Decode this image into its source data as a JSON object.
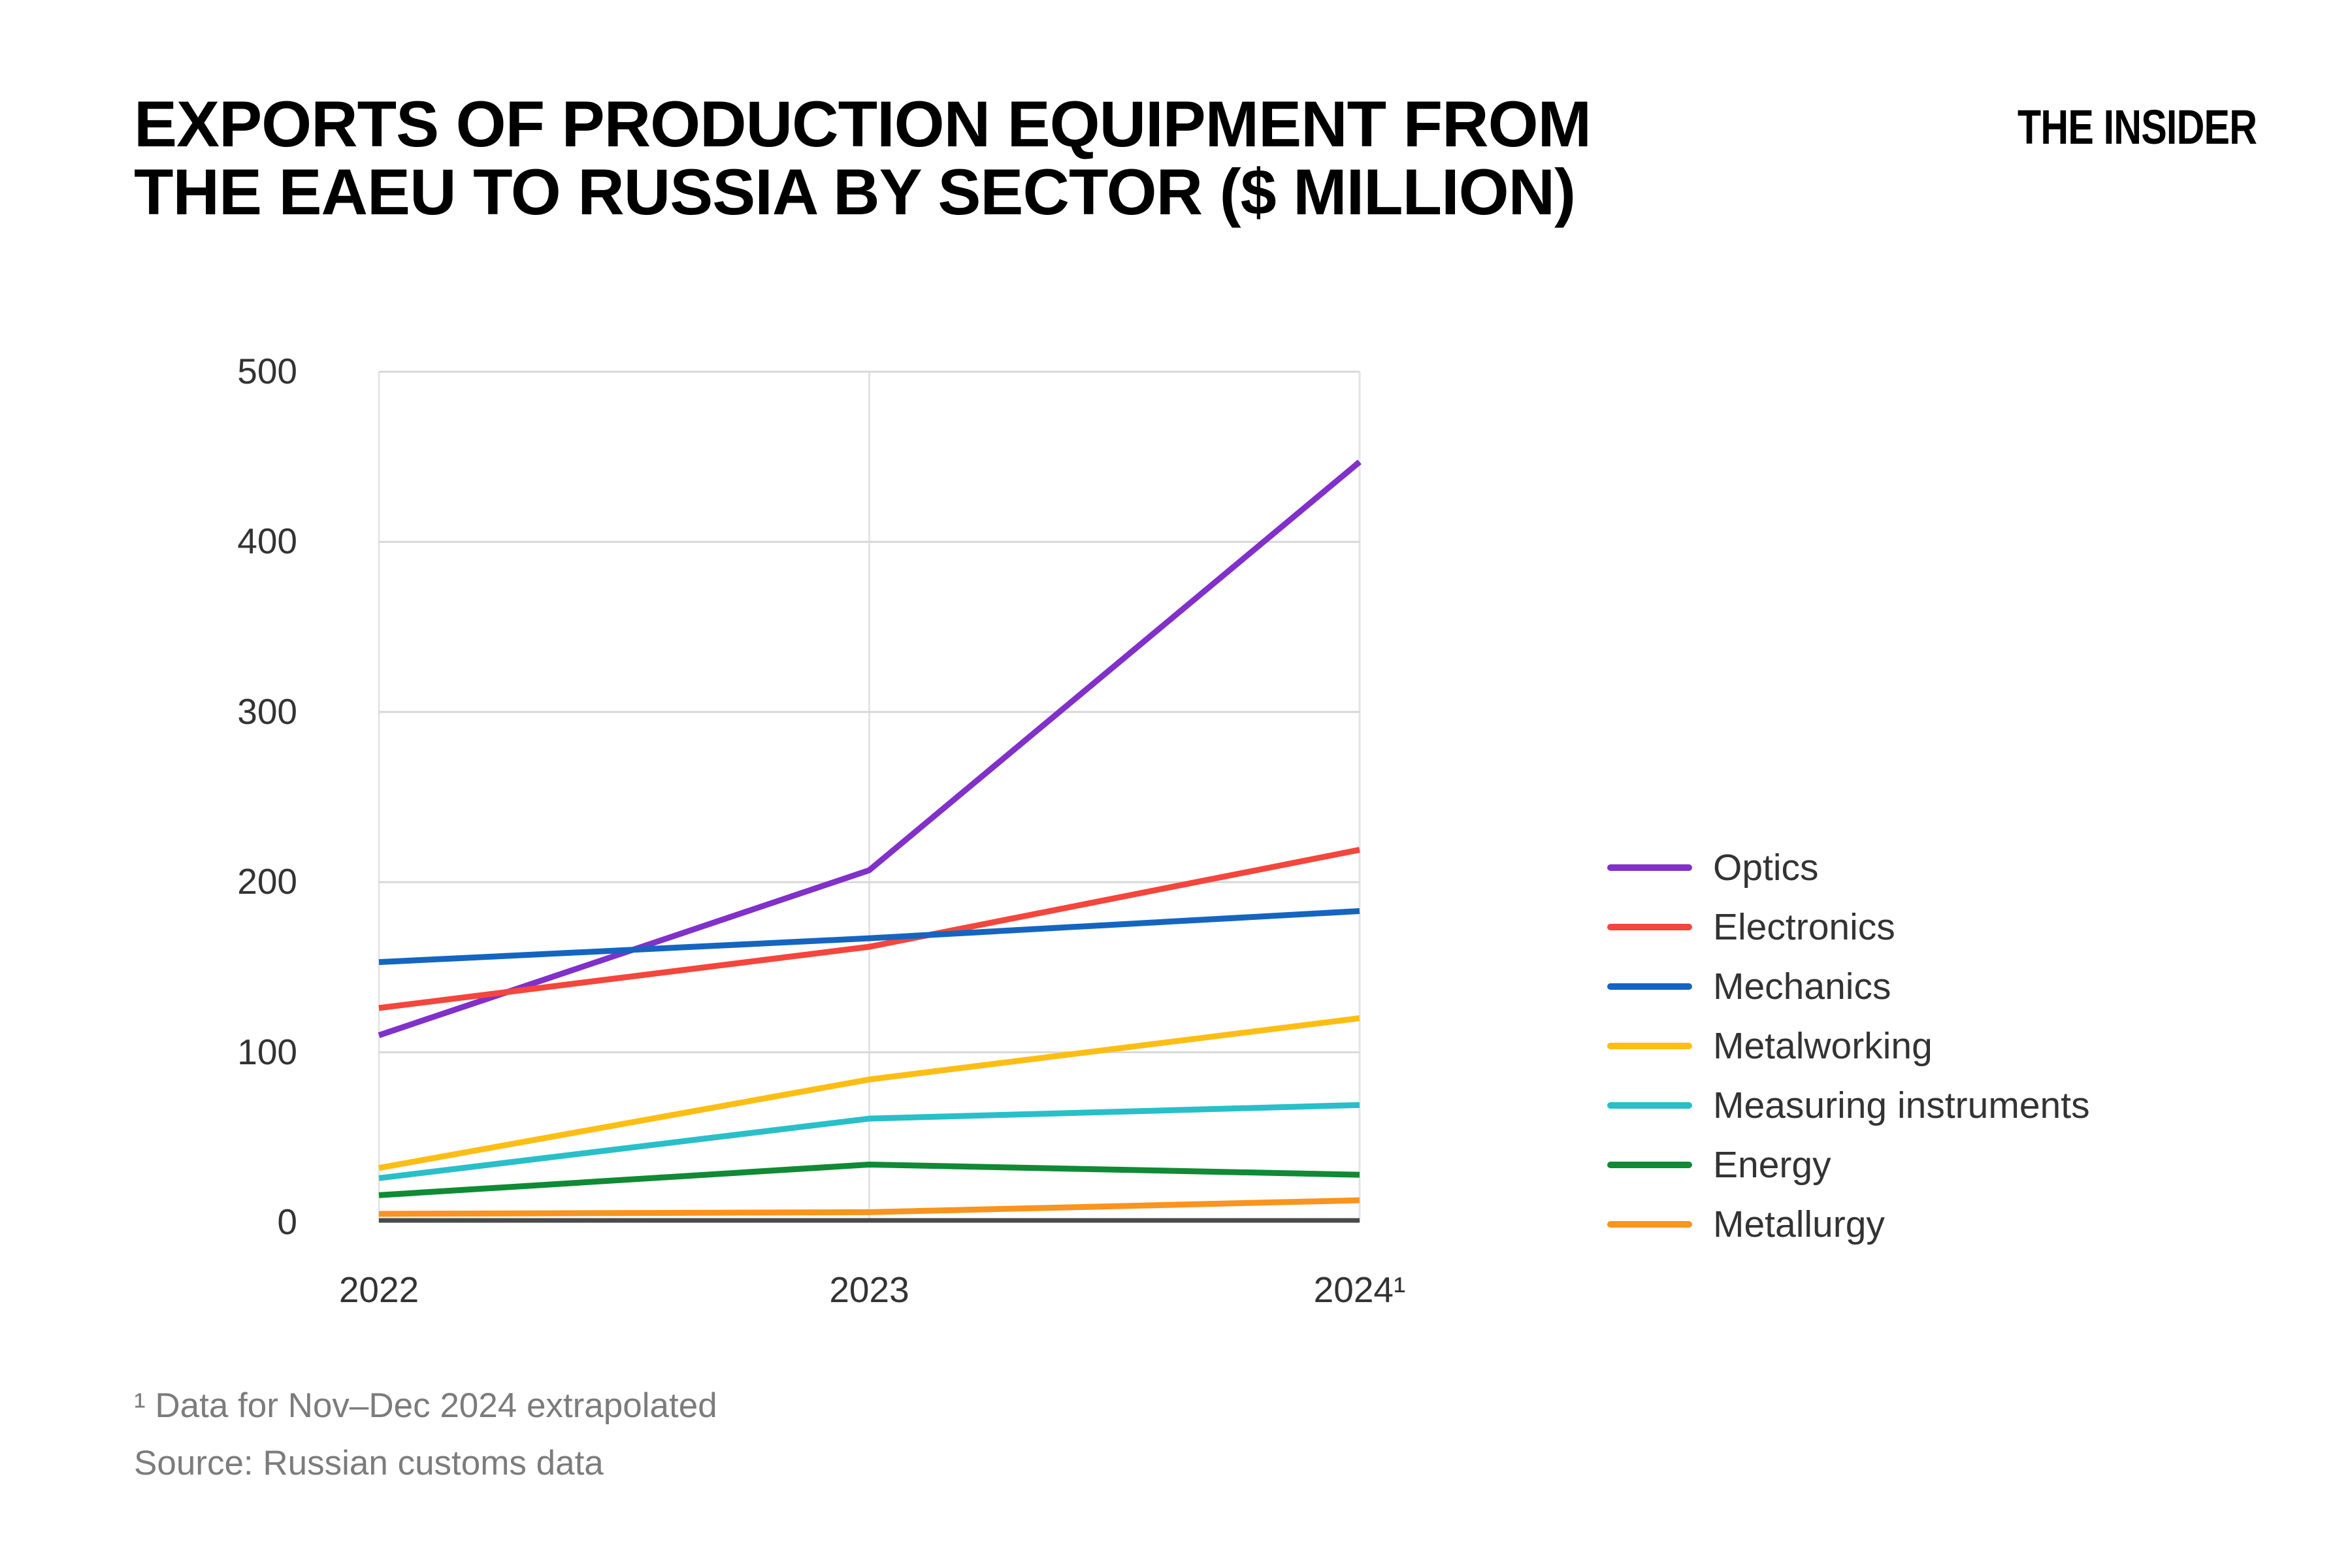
{
  "header": {
    "title_line1": "EXPORTS OF PRODUCTION EQUIPMENT FROM",
    "title_line2": "THE EAEU TO RUSSIA BY SECTOR ($ MILLION)",
    "logo": "THE INSIDER"
  },
  "chart_data": {
    "type": "line",
    "categories": [
      "2022",
      "2023",
      "2024¹"
    ],
    "series": [
      {
        "name": "Optics",
        "color": "#8130C9",
        "values": [
          110,
          207,
          447
        ]
      },
      {
        "name": "Electronics",
        "color": "#F4463C",
        "values": [
          126,
          162,
          219
        ]
      },
      {
        "name": "Mechanics",
        "color": "#1565C0",
        "values": [
          153,
          167,
          183
        ]
      },
      {
        "name": "Metalworking",
        "color": "#FDBE14",
        "values": [
          32,
          84,
          120
        ]
      },
      {
        "name": "Measuring instruments",
        "color": "#29BFC9",
        "values": [
          26,
          61,
          69
        ]
      },
      {
        "name": "Energy",
        "color": "#108A34",
        "values": [
          16,
          34,
          28
        ]
      },
      {
        "name": "Metallurgy",
        "color": "#F9941E",
        "values": [
          5,
          6,
          13
        ]
      }
    ],
    "ylim": [
      0,
      500
    ],
    "yticks": [
      0,
      100,
      200,
      300,
      400,
      500
    ],
    "grid": "horizontal",
    "legend_position": "right",
    "colors": {
      "gridline": "#d8d8d8",
      "edge_line": "#e4e4e4",
      "baseline": "#4a4a4a",
      "tick_text": "#333333"
    }
  },
  "footnotes": {
    "note": "¹ Data for Nov–Dec 2024 extrapolated",
    "source": "Source: Russian customs data"
  }
}
